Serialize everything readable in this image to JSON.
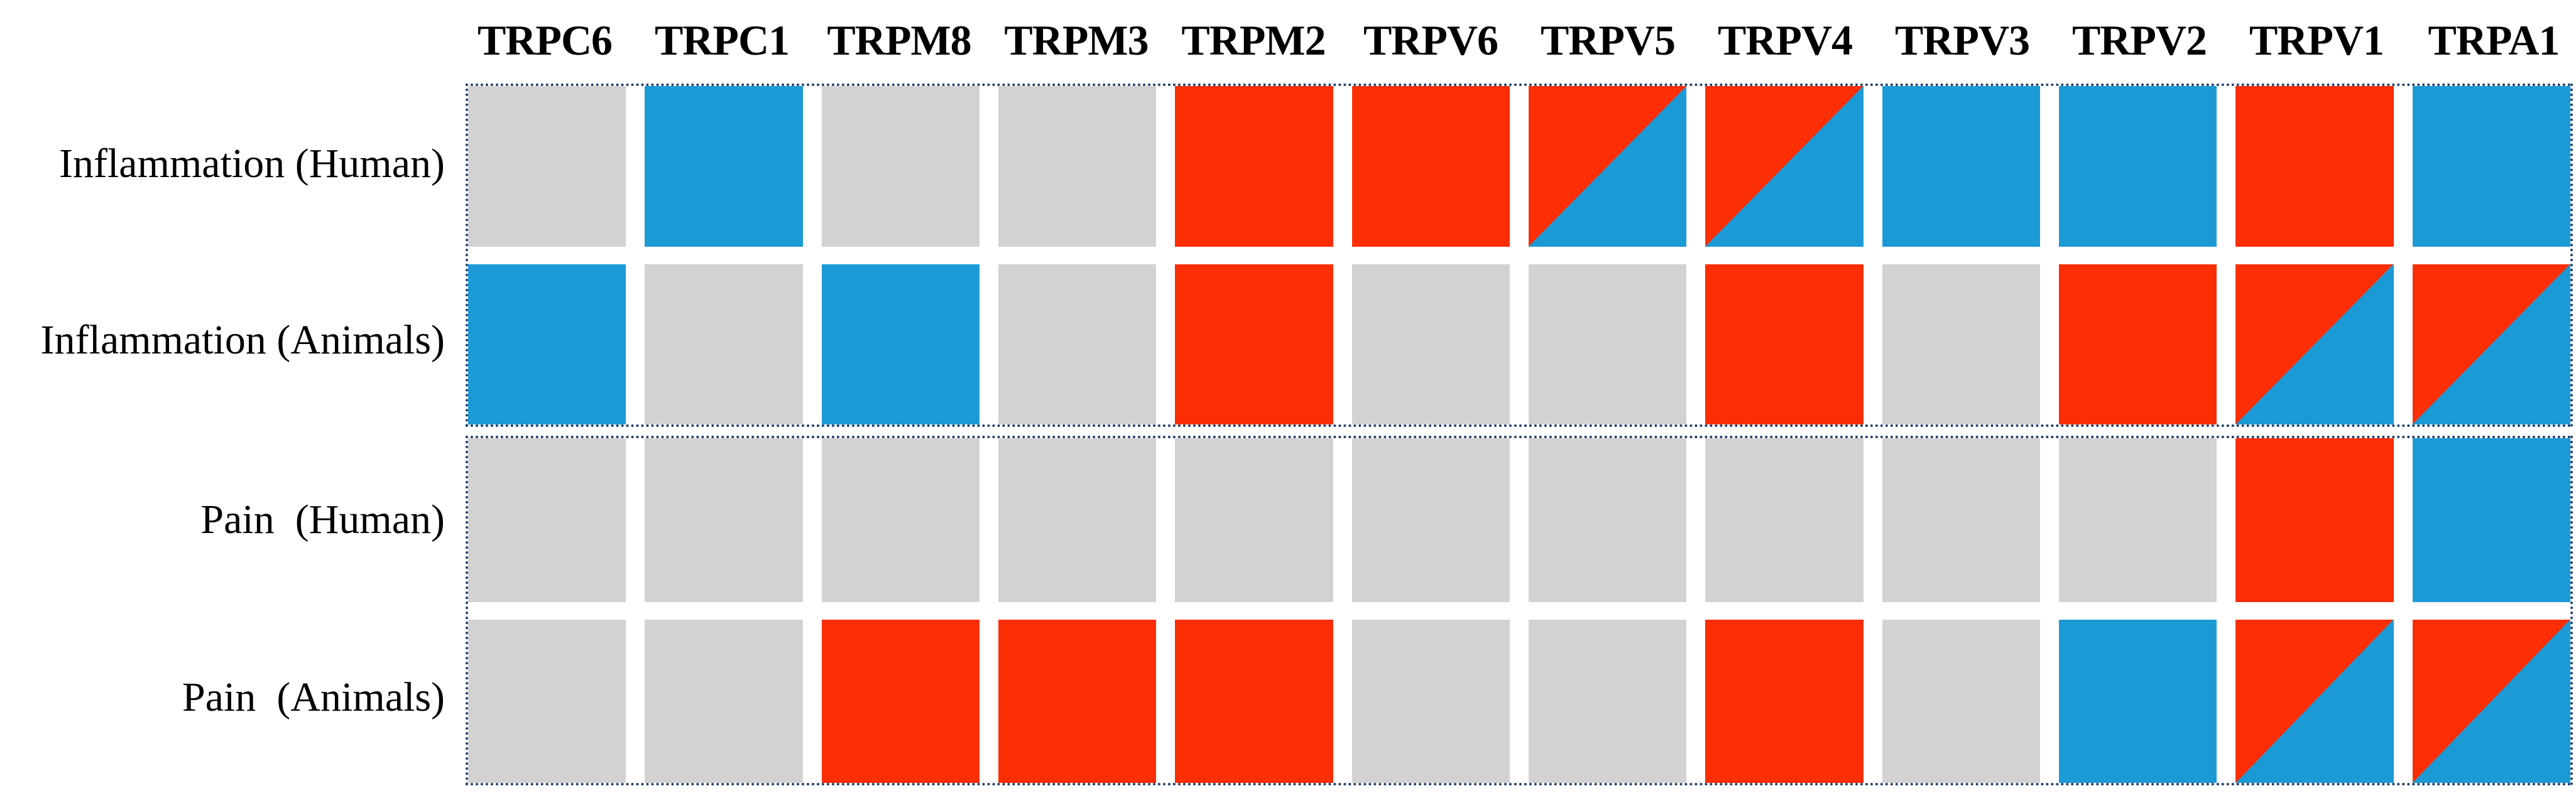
{
  "chart_data": {
    "type": "heatmap",
    "columns": [
      "TRPC6",
      "TRPC1",
      "TRPM8",
      "TRPM3",
      "TRPM2",
      "TRPV6",
      "TRPV5",
      "TRPV4",
      "TRPV3",
      "TRPV2",
      "TRPV1",
      "TRPA1"
    ],
    "row_groups": [
      {
        "rows": [
          {
            "label": "Inflammation (Human)",
            "values": [
              "gray",
              "blue",
              "gray",
              "gray",
              "red",
              "red",
              "red/blue",
              "red/blue",
              "blue",
              "blue",
              "red",
              "blue"
            ]
          },
          {
            "label": "Inflammation (Animals)",
            "values": [
              "blue",
              "gray",
              "blue",
              "gray",
              "red",
              "gray",
              "gray",
              "red",
              "gray",
              "red",
              "red/blue",
              "red/blue"
            ]
          }
        ]
      },
      {
        "rows": [
          {
            "label": "Pain  (Human)",
            "values": [
              "gray",
              "gray",
              "gray",
              "gray",
              "gray",
              "gray",
              "gray",
              "gray",
              "gray",
              "gray",
              "red",
              "blue"
            ]
          },
          {
            "label": "Pain  (Animals)",
            "values": [
              "gray",
              "gray",
              "red",
              "red",
              "red",
              "gray",
              "gray",
              "red",
              "gray",
              "blue",
              "red/blue",
              "red/blue"
            ]
          }
        ]
      }
    ],
    "cell_colors": {
      "red": "#fb2e06",
      "blue": "#1c9ad6",
      "gray": "#d2d2d2"
    },
    "border_color": "#1c3e6e",
    "cell_value_legend": {
      "red": "solid red cell",
      "blue": "solid blue cell",
      "gray": "solid light-gray (empty) cell",
      "red/blue": "diagonally split cell: red upper-left triangle, blue lower-right triangle, split line from top-right corner to bottom-left corner"
    },
    "layout": {
      "legend": "none",
      "gridlines": "off",
      "blocks": "two 2-row blocks, each outlined with a dotted navy border; white gaps between cells"
    }
  }
}
